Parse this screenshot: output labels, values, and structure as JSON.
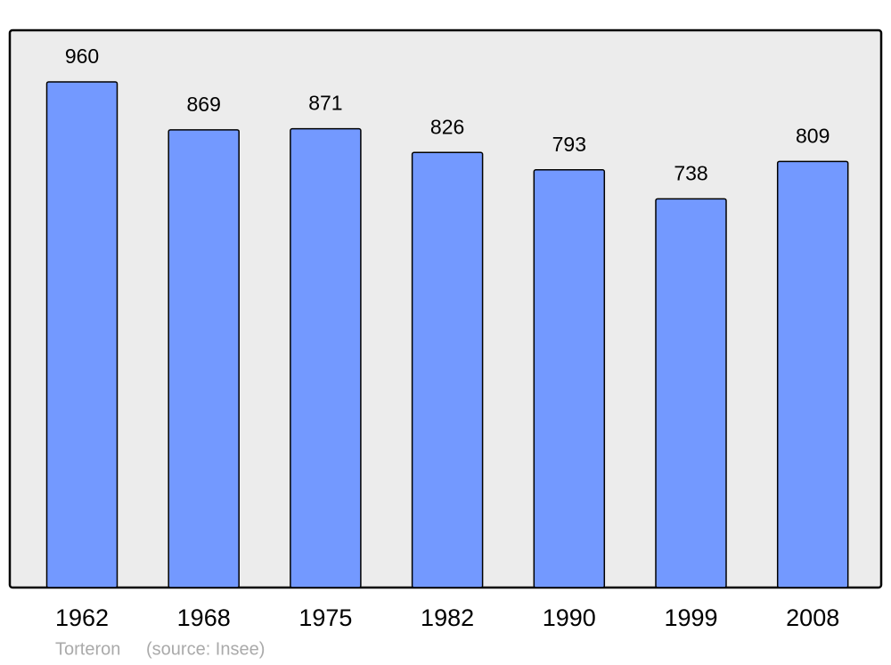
{
  "chart_data": {
    "type": "bar",
    "place": "Torteron",
    "source": "(source: Insee)",
    "categories": [
      "1962",
      "1968",
      "1975",
      "1982",
      "1990",
      "1999",
      "2008"
    ],
    "values": [
      960,
      869,
      871,
      826,
      793,
      738,
      809
    ],
    "color": "#7399ff",
    "ylim": [
      0,
      1058
    ]
  }
}
